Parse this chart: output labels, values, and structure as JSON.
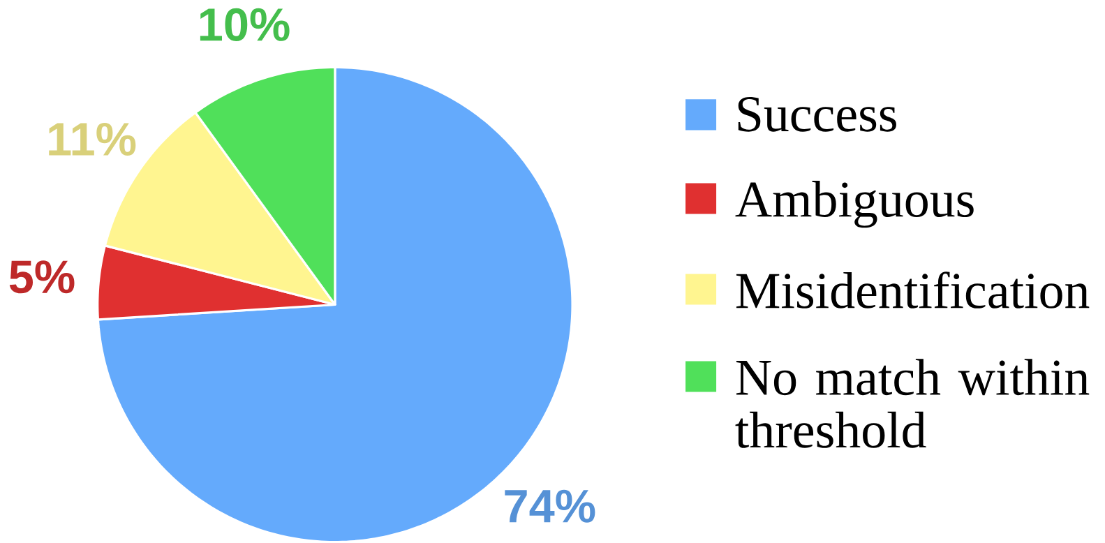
{
  "chart_data": {
    "type": "pie",
    "categories": [
      "Success",
      "Ambiguous",
      "Misidentification",
      "No match within threshold"
    ],
    "values": [
      74,
      5,
      11,
      10
    ],
    "colors": [
      "#64aafc",
      "#e03030",
      "#fff590",
      "#50e05a"
    ],
    "value_labels": [
      "74%",
      "5%",
      "11%",
      "10%"
    ],
    "legend": "right"
  }
}
